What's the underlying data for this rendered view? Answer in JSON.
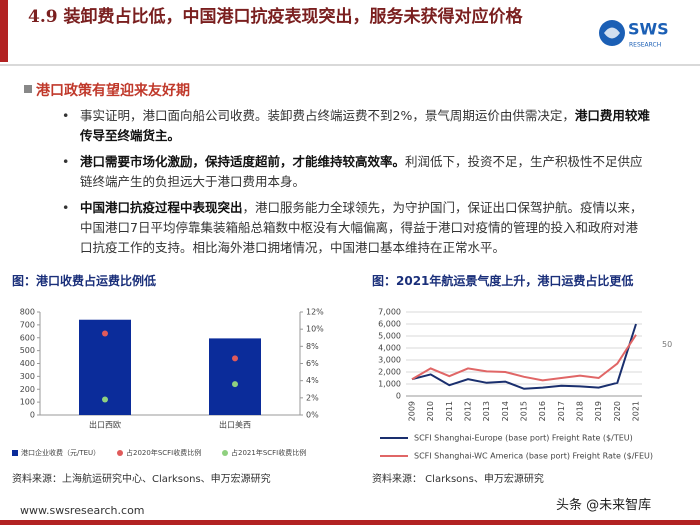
{
  "header": {
    "title": "4.9 装卸费占比低，中国港口抗疫表现突出，服务未获得对应价格",
    "logo": "SWS",
    "logo_sub": "RESEARCH"
  },
  "section": "港口政策有望迎来友好期",
  "bullets": [
    [
      {
        "text": "事实证明，港口面向船公司收费。装卸费占终端运费不到2%，景气周期运价由供需决定，",
        "bold": false
      },
      {
        "text": "港口费用较难传导至终端货主。",
        "bold": true
      }
    ],
    [
      {
        "text": "港口需要市场化激励，保持适度超前，才能维持较高效率。",
        "bold": true
      },
      {
        "text": "利润低下，投资不足，生产积极性不足供应链终端产生的负担远大于港口费用本身。",
        "bold": false
      }
    ],
    [
      {
        "text": "中国港口抗疫过程中表现突出",
        "bold": true
      },
      {
        "text": "，港口服务能力全球领先，为守护国门，保证出口保驾护航。疫情以来，中国港口7日平均停靠集装箱船总箱数中枢没有大幅偏离，得益于港口对疫情的管理的投入和政府对港口抗疫工作的支持。相比海外港口拥堵情况，中国港口基本维持在正常水平。",
        "bold": false
      }
    ]
  ],
  "chart_data": [
    {
      "type": "bar",
      "title": "图：港口收费占运费比例低",
      "categories": [
        "出口西欧",
        "出口美西"
      ],
      "series": [
        {
          "name": "港口企业收费（元/TEU）",
          "type": "bar",
          "color": "#0b2c9a",
          "values": [
            740,
            595
          ]
        },
        {
          "name": "占2020年SCFI收费比例",
          "type": "scatter",
          "color": "#e05a5a",
          "axis": "y2",
          "values": [
            9.5,
            6.6
          ]
        },
        {
          "name": "占2021年SCFI收费比例",
          "type": "scatter",
          "color": "#8fd07f",
          "axis": "y2",
          "values": [
            1.8,
            3.6
          ]
        }
      ],
      "ylim": [
        0,
        800
      ],
      "yticks": [
        0,
        100,
        200,
        300,
        400,
        500,
        600,
        700,
        800
      ],
      "y2lim": [
        0,
        12
      ],
      "y2ticks": [
        {
          "value": 0,
          "label": "0%"
        },
        {
          "value": 2,
          "label": "2%"
        },
        {
          "value": 4,
          "label": "4%"
        },
        {
          "value": 6,
          "label": "6%"
        },
        {
          "value": 8,
          "label": "8%"
        },
        {
          "value": 10,
          "label": "10%"
        },
        {
          "value": 12,
          "label": "12%"
        }
      ],
      "legend": "bottom"
    },
    {
      "type": "line",
      "title": "图：2021年航运景气度上升，港口运费占比更低",
      "categories": [
        "2009",
        "2010",
        "2011",
        "2012",
        "2013",
        "2014",
        "2015",
        "2016",
        "2017",
        "2018",
        "2019",
        "2020",
        "2021"
      ],
      "series": [
        {
          "name": "SCFI Shanghai-Europe (base port) Freight Rate  ($/TEU)",
          "color": "#1a2f6e",
          "values": [
            1400,
            1800,
            900,
            1400,
            1100,
            1200,
            600,
            700,
            850,
            800,
            700,
            1100,
            6000
          ]
        },
        {
          "name": "SCFI Shanghai-WC America (base port) Freight Rate  ($/FEU)",
          "color": "#e06666",
          "values": [
            1400,
            2300,
            1650,
            2300,
            2050,
            2000,
            1600,
            1300,
            1500,
            1700,
            1500,
            2700,
            5100
          ]
        }
      ],
      "ylim": [
        0,
        7000
      ],
      "yticks": [
        0,
        {
          "value": 1000,
          "label": "1,000"
        },
        {
          "value": 2000,
          "label": "2,000"
        },
        {
          "value": 3000,
          "label": "3,000"
        },
        {
          "value": 4000,
          "label": "4,000"
        },
        {
          "value": 5000,
          "label": "5,000"
        },
        {
          "value": 6000,
          "label": "6,000"
        },
        {
          "value": 7000,
          "label": "7,000"
        }
      ],
      "legend": "bottom"
    }
  ],
  "sources": [
    "资料来源：上海航运研究中心、Clarksons、申万宏源研究",
    "资料来源： Clarksons、申万宏源研究"
  ],
  "footer": "www.swsresearch.com",
  "watermark": "头条 @未来智库",
  "page_number": "50"
}
